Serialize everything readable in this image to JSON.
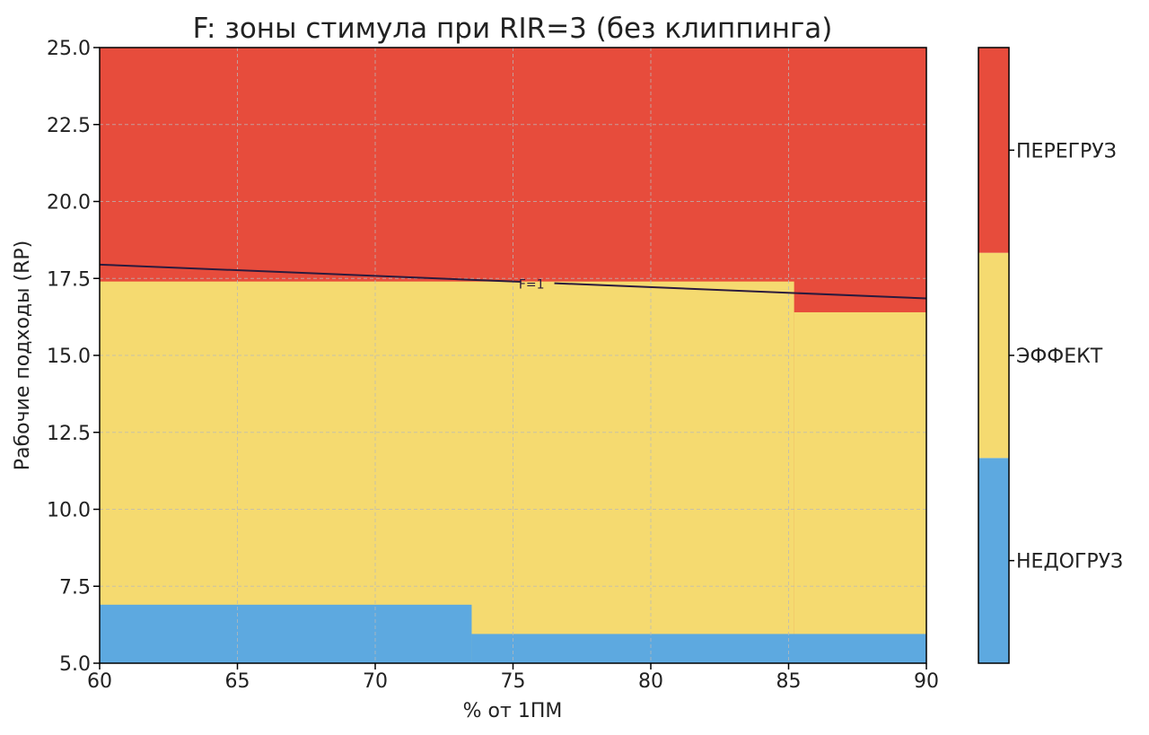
{
  "chart_data": {
    "type": "heatmap",
    "title": "F: зоны стимула при RIR=3 (без клиппинга)",
    "xlabel": "% от 1ПМ",
    "ylabel": "Рабочие подходы (RP)",
    "xlim": [
      60,
      90
    ],
    "ylim": [
      5,
      25
    ],
    "xticks": [
      60,
      65,
      70,
      75,
      80,
      85,
      90
    ],
    "yticks": [
      5,
      7.5,
      10,
      12.5,
      15,
      17.5,
      20,
      22.5,
      25
    ],
    "xtick_labels": [
      "60",
      "65",
      "70",
      "75",
      "80",
      "85",
      "90"
    ],
    "ytick_labels": [
      "5.0",
      "7.5",
      "10.0",
      "12.5",
      "15.0",
      "17.5",
      "20.0",
      "22.5",
      "25.0"
    ],
    "grid": true,
    "zones": [
      {
        "name": "НЕДОГРУЗ",
        "color": "#5DA9E0"
      },
      {
        "name": "ЭФФЕКТ",
        "color": "#F5DA70"
      },
      {
        "name": "ПЕРЕГРУЗ",
        "color": "#E74C3C"
      }
    ],
    "boundaries": {
      "lower": [
        {
          "x": [
            60,
            73.5
          ],
          "y": 6.9
        },
        {
          "x": [
            73.5,
            90
          ],
          "y": 5.95
        }
      ],
      "upper": [
        {
          "x": [
            60,
            85.2
          ],
          "y": 17.4
        },
        {
          "x": [
            85.2,
            90
          ],
          "y": 16.4
        }
      ]
    },
    "contour": {
      "label": "F=1",
      "label_at": [
        76,
        17.35
      ],
      "x": [
        60,
        90
      ],
      "y": [
        17.95,
        16.85
      ]
    },
    "colorbar": {
      "labels": [
        "ПЕРЕГРУЗ",
        "ЭФФЕКТ",
        "НЕДОГРУЗ"
      ]
    }
  }
}
